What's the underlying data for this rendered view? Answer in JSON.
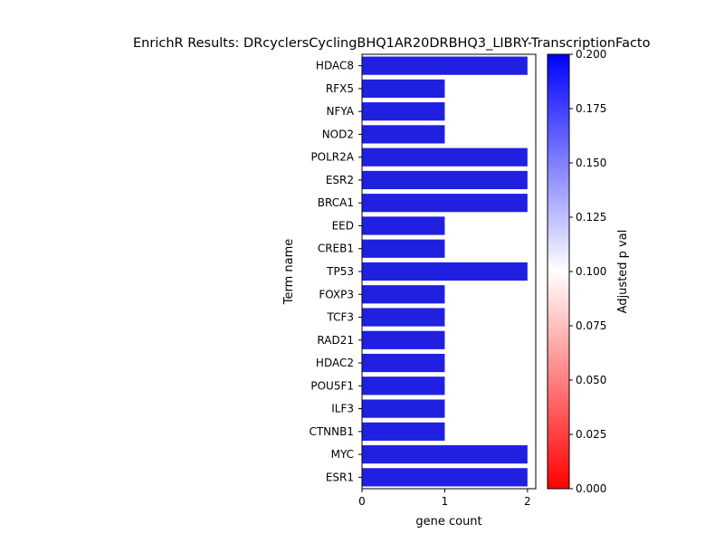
{
  "chart_data": {
    "type": "bar",
    "orientation": "horizontal",
    "title": "EnrichR Results: DRcyclersCyclingBHQ1AR20DRBHQ3_LIBRY-TranscriptionFacto",
    "xlabel": "gene count",
    "ylabel": "Term name",
    "xlim": [
      0,
      2.1
    ],
    "xticks": [
      0,
      1,
      2
    ],
    "categories": [
      "HDAC8",
      "RFX5",
      "NFYA",
      "NOD2",
      "POLR2A",
      "ESR2",
      "BRCA1",
      "EED",
      "CREB1",
      "TP53",
      "FOXP3",
      "TCF3",
      "RAD21",
      "HDAC2",
      "POU5F1",
      "ILF3",
      "CTNNB1",
      "MYC",
      "ESR1"
    ],
    "values": [
      2,
      1,
      1,
      1,
      2,
      2,
      2,
      1,
      1,
      2,
      1,
      1,
      1,
      1,
      1,
      1,
      1,
      2,
      2
    ],
    "bar_color": "#2020e0",
    "colorbar": {
      "label": "Adjusted p val",
      "range": [
        0.0,
        0.2
      ],
      "ticks": [
        "0.000",
        "0.025",
        "0.050",
        "0.075",
        "0.100",
        "0.125",
        "0.150",
        "0.175",
        "0.200"
      ],
      "colormap": [
        "#ff0000",
        "#ffffff",
        "#0000ff"
      ]
    }
  }
}
